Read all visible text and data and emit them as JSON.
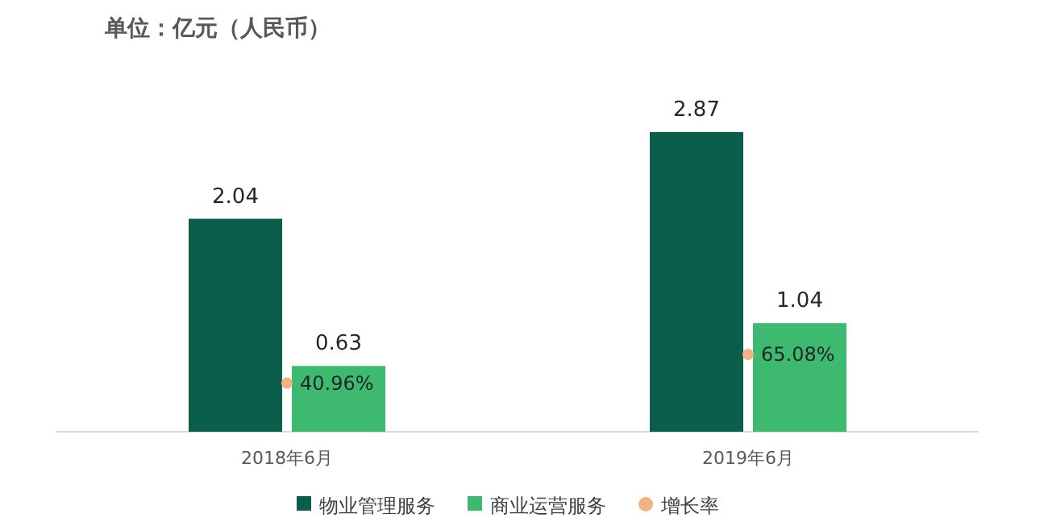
{
  "chart_data": {
    "type": "bar",
    "title": "单位：亿元（人民币）",
    "categories": [
      "2018年6月",
      "2019年6月"
    ],
    "series": [
      {
        "name": "物业管理服务",
        "color": "#0b5e4a",
        "values": [
          2.04,
          2.87
        ],
        "value_labels": [
          "2.04",
          "2.87"
        ]
      },
      {
        "name": "商业运营服务",
        "color": "#3dba6f",
        "values": [
          0.63,
          1.04
        ],
        "value_labels": [
          "0.63",
          "1.04"
        ]
      },
      {
        "name": "增长率",
        "type": "scatter",
        "axis": "y2",
        "color": "#f4b183",
        "values": [
          40.96,
          65.08
        ],
        "value_labels": [
          "40.96%",
          "65.08%"
        ]
      }
    ],
    "legend": "bottom",
    "marker": "circle"
  }
}
